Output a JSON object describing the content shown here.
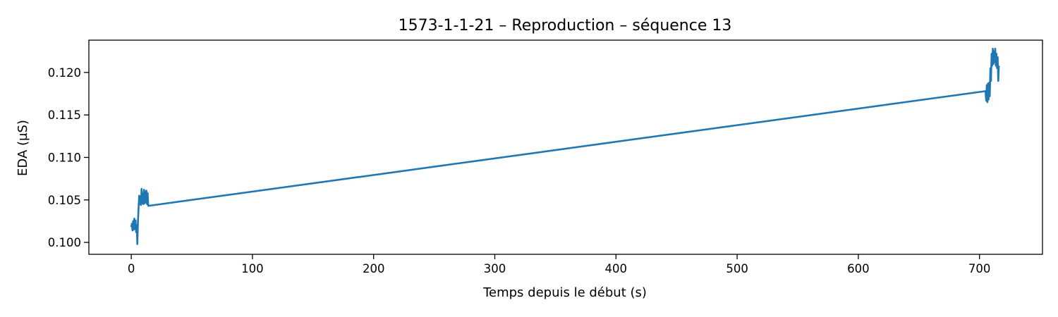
{
  "chart_data": {
    "type": "line",
    "title": "1573-1-1-21 – Reproduction – séquence 13",
    "xlabel": "Temps depuis le début (s)",
    "ylabel": "EDA (µS)",
    "xlim": [
      -35,
      752
    ],
    "ylim": [
      0.0986,
      0.1238
    ],
    "xticks": [
      0,
      100,
      200,
      300,
      400,
      500,
      600,
      700
    ],
    "yticks": [
      0.1,
      0.105,
      0.11,
      0.115,
      0.12
    ],
    "xtick_labels": [
      "0",
      "100",
      "200",
      "300",
      "400",
      "500",
      "600",
      "700"
    ],
    "ytick_labels": [
      "0.100",
      "0.105",
      "0.110",
      "0.115",
      "0.120"
    ],
    "grid": false,
    "legend": false,
    "series": [
      {
        "color": "#1f77b4",
        "x": [
          0,
          0.5,
          1,
          1.5,
          2,
          2.5,
          3,
          3.5,
          4,
          4.5,
          5,
          5.5,
          6,
          6.5,
          7,
          7.5,
          8,
          8.5,
          9,
          9.5,
          10,
          10.5,
          11,
          11.5,
          12,
          12.5,
          13,
          13.5,
          14,
          705,
          705.5,
          706,
          706.5,
          707,
          707.5,
          708,
          708.5,
          709,
          709.5,
          710,
          710.5,
          711,
          711.5,
          712,
          712.5,
          713,
          713.5,
          714,
          714.5,
          715,
          715.5,
          716
        ],
        "y": [
          0.1018,
          0.1022,
          0.1014,
          0.1025,
          0.1015,
          0.1028,
          0.1016,
          0.1026,
          0.1012,
          0.102,
          0.0998,
          0.1025,
          0.104,
          0.1055,
          0.1045,
          0.1054,
          0.1044,
          0.1063,
          0.1046,
          0.1058,
          0.1045,
          0.1062,
          0.1046,
          0.106,
          0.1047,
          0.1061,
          0.1045,
          0.1058,
          0.1043,
          0.1178,
          0.1167,
          0.1185,
          0.1165,
          0.1187,
          0.1168,
          0.1188,
          0.1172,
          0.1205,
          0.119,
          0.1222,
          0.1208,
          0.1228,
          0.121,
          0.1225,
          0.1212,
          0.1228,
          0.1208,
          0.1222,
          0.1205,
          0.1218,
          0.119,
          0.1208
        ]
      }
    ]
  }
}
